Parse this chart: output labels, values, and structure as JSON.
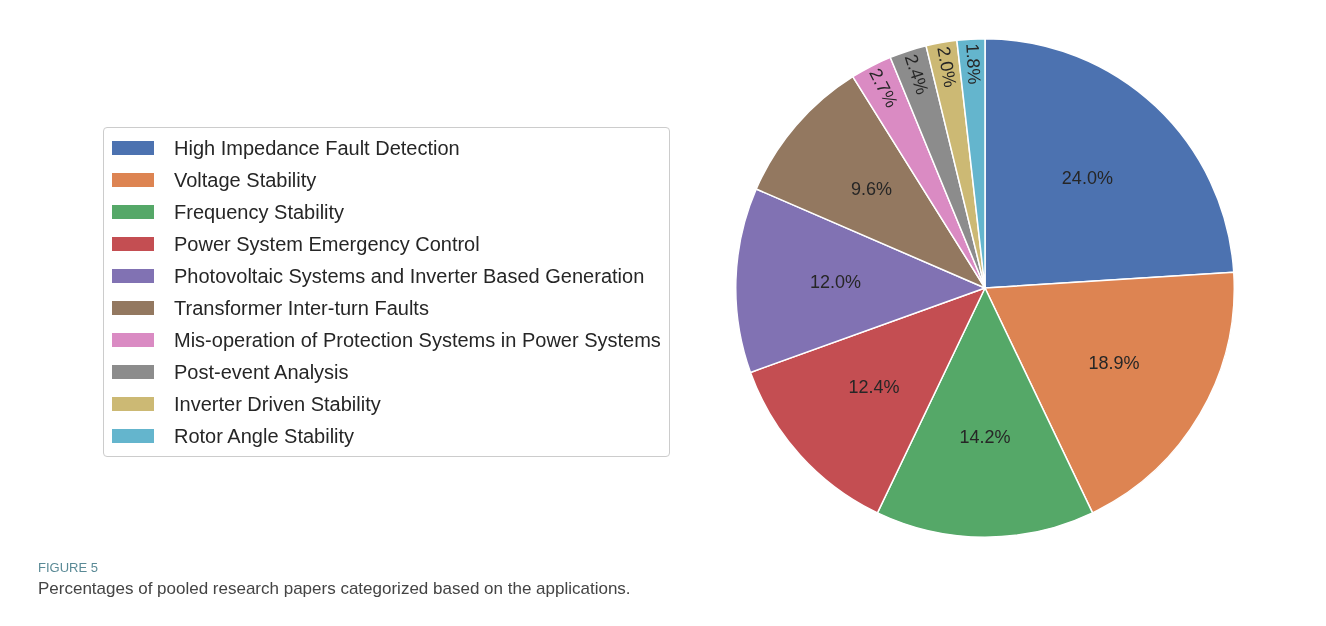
{
  "chart_data": {
    "type": "pie",
    "categories": [
      "High Impedance Fault Detection",
      "Voltage Stability",
      "Frequency Stability",
      "Power System Emergency Control",
      "Photovoltaic Systems and Inverter Based Generation",
      "Transformer Inter-turn Faults",
      "Mis-operation of Protection Systems in Power Systems",
      "Post-event Analysis",
      "Inverter Driven Stability",
      "Rotor Angle Stability"
    ],
    "values": [
      24.0,
      18.9,
      14.2,
      12.4,
      12.0,
      9.6,
      2.7,
      2.4,
      2.0,
      1.8
    ],
    "value_labels": [
      "24.0%",
      "18.9%",
      "14.2%",
      "12.4%",
      "12.0%",
      "9.6%",
      "2.7%",
      "2.4%",
      "2.0%",
      "1.8%"
    ],
    "colors": [
      "#4c72b0",
      "#dd8452",
      "#55a868",
      "#c44e52",
      "#8172b3",
      "#937860",
      "#da8bc3",
      "#8c8c8c",
      "#ccb974",
      "#64b5cd"
    ],
    "legend": "left",
    "annotations": [
      "FIGURE 5",
      "Percentages of pooled research papers categorized based on the applications."
    ]
  }
}
